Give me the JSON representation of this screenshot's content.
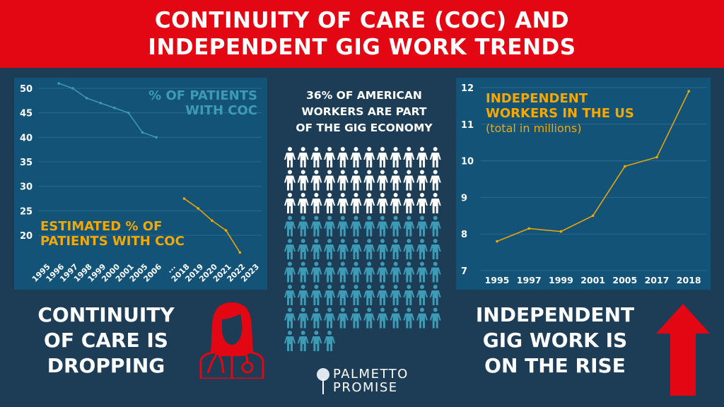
{
  "header": {
    "line1": "CONTINUITY OF CARE (COC) AND",
    "line2": "INDEPENDENT GIG WORK TRENDS"
  },
  "colors": {
    "red": "#e30613",
    "bg": "#1d3d56",
    "panel": "#135378",
    "orange": "#f5a800",
    "teal": "#3e9bb5",
    "white": "#ffffff"
  },
  "center": {
    "title_lines": [
      "36% OF AMERICAN",
      "WORKERS ARE PART",
      "OF THE GIG ECONOMY"
    ],
    "gig_percent": 36,
    "total_people": 100
  },
  "left_caption": {
    "lines": [
      "CONTINUITY",
      "OF CARE IS",
      "DROPPING"
    ],
    "icon": "doctor-icon"
  },
  "right_caption": {
    "lines": [
      "INDEPENDENT",
      "GIG WORK IS",
      "ON THE RISE"
    ],
    "icon": "arrow-up-icon"
  },
  "logo": {
    "line1": "PALMETTO",
    "line2": "PROMISE"
  },
  "chart_data": [
    {
      "type": "line",
      "categories": [
        "1995",
        "1996",
        "1997",
        "1998",
        "1999",
        "2000",
        "2001",
        "2005",
        "2006",
        "...",
        "2018",
        "2019",
        "2020",
        "2021",
        "2022",
        "2023"
      ],
      "yticks": [
        20,
        25,
        30,
        35,
        40,
        45,
        50
      ],
      "ylim": [
        15,
        51
      ],
      "grid": true,
      "series": [
        {
          "name": "% OF PATIENTS WITH COC",
          "label_lines": [
            "% OF PATIENTS",
            "WITH COC"
          ],
          "color": "#3e9bb5",
          "values": [
            null,
            51,
            50,
            48,
            47,
            46,
            45,
            41,
            40,
            null,
            null,
            null,
            null,
            null,
            null,
            null
          ]
        },
        {
          "name": "ESTIMATED % OF PATIENTS WITH COC",
          "label_lines": [
            "ESTIMATED % OF",
            "PATIENTS WITH COC"
          ],
          "color": "#f5a800",
          "values": [
            null,
            null,
            null,
            null,
            null,
            null,
            null,
            null,
            null,
            null,
            27.5,
            25.5,
            23,
            21,
            16.5,
            null
          ]
        }
      ]
    },
    {
      "type": "line",
      "categories": [
        "1995",
        "1997",
        "1999",
        "2001",
        "2005",
        "2017",
        "2018"
      ],
      "yticks": [
        7,
        8,
        9,
        10,
        11,
        12
      ],
      "ylim": [
        7,
        12
      ],
      "grid": true,
      "title_lines": [
        "INDEPENDENT",
        "WORKERS IN THE US"
      ],
      "subtitle": "(total in millions)",
      "series": [
        {
          "name": "Independent workers (millions)",
          "color": "#f5a800",
          "values": [
            7.8,
            8.15,
            8.07,
            8.5,
            9.85,
            10.1,
            11.9
          ]
        }
      ]
    }
  ]
}
